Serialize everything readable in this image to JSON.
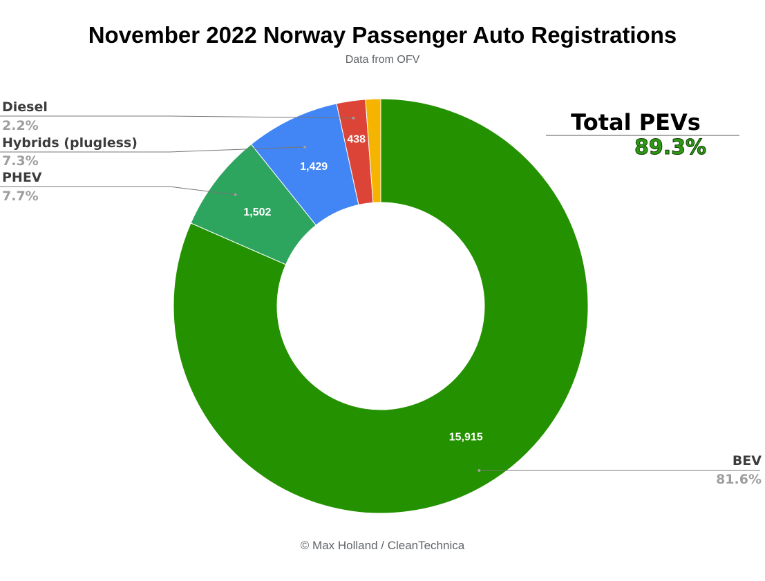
{
  "chart_data": {
    "type": "pie",
    "title": "November 2022 Norway Passenger Auto Registrations",
    "subtitle": "Data from OFV",
    "donut": true,
    "slices": [
      {
        "name": "BEV",
        "value": 15915,
        "value_label": "15,915",
        "percent_label": "81.6%",
        "color": "#239100"
      },
      {
        "name": "PHEV",
        "value": 1502,
        "value_label": "1,502",
        "percent_label": "7.7%",
        "color": "#2ea55f"
      },
      {
        "name": "Hybrids (plugless)",
        "value": 1429,
        "value_label": "1,429",
        "percent_label": "7.3%",
        "color": "#4285f4"
      },
      {
        "name": "Diesel",
        "value": 438,
        "value_label": "438",
        "percent_label": "2.2%",
        "color": "#db4437"
      },
      {
        "name": "",
        "value": 230,
        "value_label": "",
        "percent_label": "",
        "color": "#f4b400"
      }
    ],
    "annotation": {
      "label": "Total PEVs",
      "value": "89.3%"
    }
  },
  "footer": "© Max Holland / CleanTechnica"
}
